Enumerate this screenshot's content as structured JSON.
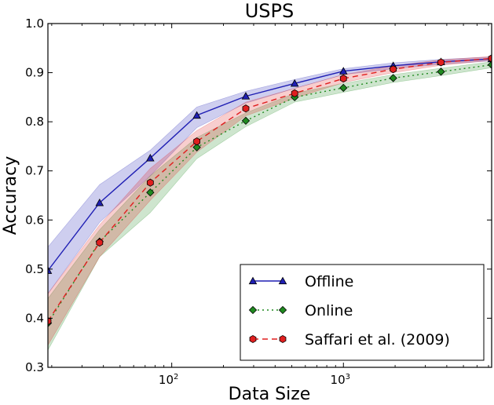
{
  "chart_data": {
    "type": "line",
    "title": "USPS",
    "xlabel": "Data Size",
    "ylabel": "Accuracy",
    "xscale": "log",
    "xlim": [
      19,
      7300
    ],
    "ylim": [
      0.3,
      1.0
    ],
    "x_ticks": [
      {
        "value": 100,
        "base": "10",
        "exp": "2"
      },
      {
        "value": 1000,
        "base": "10",
        "exp": "3"
      }
    ],
    "y_ticks": [
      "0.3",
      "0.4",
      "0.5",
      "0.6",
      "0.7",
      "0.8",
      "0.9",
      "1.0"
    ],
    "grid": false,
    "legend_position": "lower-right",
    "x": [
      19,
      38,
      75,
      140,
      270,
      520,
      1000,
      1950,
      3700,
      7300
    ],
    "series": [
      {
        "name": "Offline",
        "color": "#1f1fb4",
        "linestyle": "solid",
        "marker": "triangle",
        "values": [
          0.497,
          0.635,
          0.726,
          0.813,
          0.852,
          0.878,
          0.903,
          0.914,
          0.922,
          0.928
        ],
        "lower": [
          0.45,
          0.595,
          0.69,
          0.788,
          0.838,
          0.868,
          0.896,
          0.908,
          0.917,
          0.924
        ],
        "upper": [
          0.545,
          0.672,
          0.742,
          0.83,
          0.862,
          0.886,
          0.908,
          0.92,
          0.927,
          0.932
        ]
      },
      {
        "name": "Online",
        "color": "#1f8a1f",
        "linestyle": "dashdot",
        "marker": "diamond",
        "values": [
          0.39,
          0.556,
          0.656,
          0.748,
          0.802,
          0.85,
          0.869,
          0.889,
          0.902,
          0.916
        ],
        "lower": [
          0.335,
          0.525,
          0.615,
          0.725,
          0.79,
          0.84,
          0.86,
          0.88,
          0.894,
          0.91
        ],
        "upper": [
          0.44,
          0.58,
          0.69,
          0.768,
          0.818,
          0.858,
          0.878,
          0.896,
          0.909,
          0.922
        ]
      },
      {
        "name": "Saffari et al. (2009)",
        "color": "#e01f1f",
        "linestyle": "dashed",
        "marker": "hexagon",
        "values": [
          0.394,
          0.554,
          0.676,
          0.76,
          0.827,
          0.858,
          0.888,
          0.907,
          0.921,
          0.929
        ],
        "lower": [
          0.345,
          0.525,
          0.64,
          0.738,
          0.812,
          0.848,
          0.88,
          0.9,
          0.915,
          0.925
        ],
        "upper": [
          0.45,
          0.59,
          0.705,
          0.782,
          0.84,
          0.868,
          0.896,
          0.914,
          0.926,
          0.933
        ]
      }
    ]
  }
}
